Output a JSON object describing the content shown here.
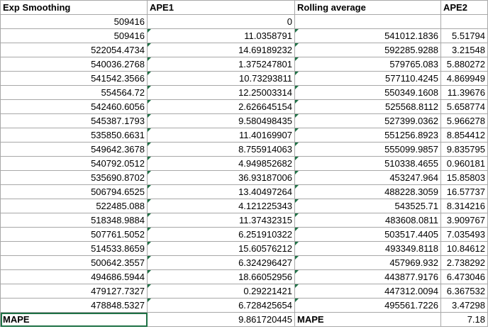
{
  "headers": [
    "Exp Smoothing",
    "APE1",
    "Rolling average",
    "APE2"
  ],
  "rows": [
    [
      "509416",
      "0",
      "",
      ""
    ],
    [
      "509416",
      "11.0358791",
      "541012.1836",
      "5.51794"
    ],
    [
      "522054.4734",
      "14.69189232",
      "592285.9288",
      "3.21548"
    ],
    [
      "540036.2768",
      "1.375247801",
      "579765.083",
      "5.880272"
    ],
    [
      "541542.3566",
      "10.73293811",
      "577110.4245",
      "4.869949"
    ],
    [
      "554564.72",
      "12.25003314",
      "550349.1608",
      "11.39676"
    ],
    [
      "542460.6056",
      "2.626645154",
      "525568.8112",
      "5.658774"
    ],
    [
      "545387.1793",
      "9.580498435",
      "527399.0362",
      "5.966278"
    ],
    [
      "535850.6631",
      "11.40169907",
      "551256.8923",
      "8.854412"
    ],
    [
      "549642.3678",
      "8.755914063",
      "555099.9857",
      "9.835795"
    ],
    [
      "540792.0512",
      "4.949852682",
      "510338.4655",
      "0.960181"
    ],
    [
      "535690.8702",
      "36.93187006",
      "453247.964",
      "15.85803"
    ],
    [
      "506794.6525",
      "13.40497264",
      "488228.3059",
      "16.57737"
    ],
    [
      "522485.088",
      "4.121225343",
      "543525.71",
      "8.314216"
    ],
    [
      "518348.9884",
      "11.37432315",
      "483608.0811",
      "3.909767"
    ],
    [
      "507761.5052",
      "6.251910322",
      "503517.4405",
      "7.035493"
    ],
    [
      "514533.8659",
      "15.60576212",
      "493349.8118",
      "10.84612"
    ],
    [
      "500642.3557",
      "6.324296427",
      "457969.932",
      "2.738292"
    ],
    [
      "494686.5944",
      "18.66052956",
      "443877.9176",
      "6.473046"
    ],
    [
      "479127.7327",
      "0.29221421",
      "447312.0094",
      "6.367532"
    ],
    [
      "478848.5327",
      "6.728425654",
      "495561.7226",
      "3.47298"
    ]
  ],
  "footer": {
    "label1": "MAPE",
    "value1": "9.861720445",
    "label2": "MAPE",
    "value2": "7.18"
  }
}
